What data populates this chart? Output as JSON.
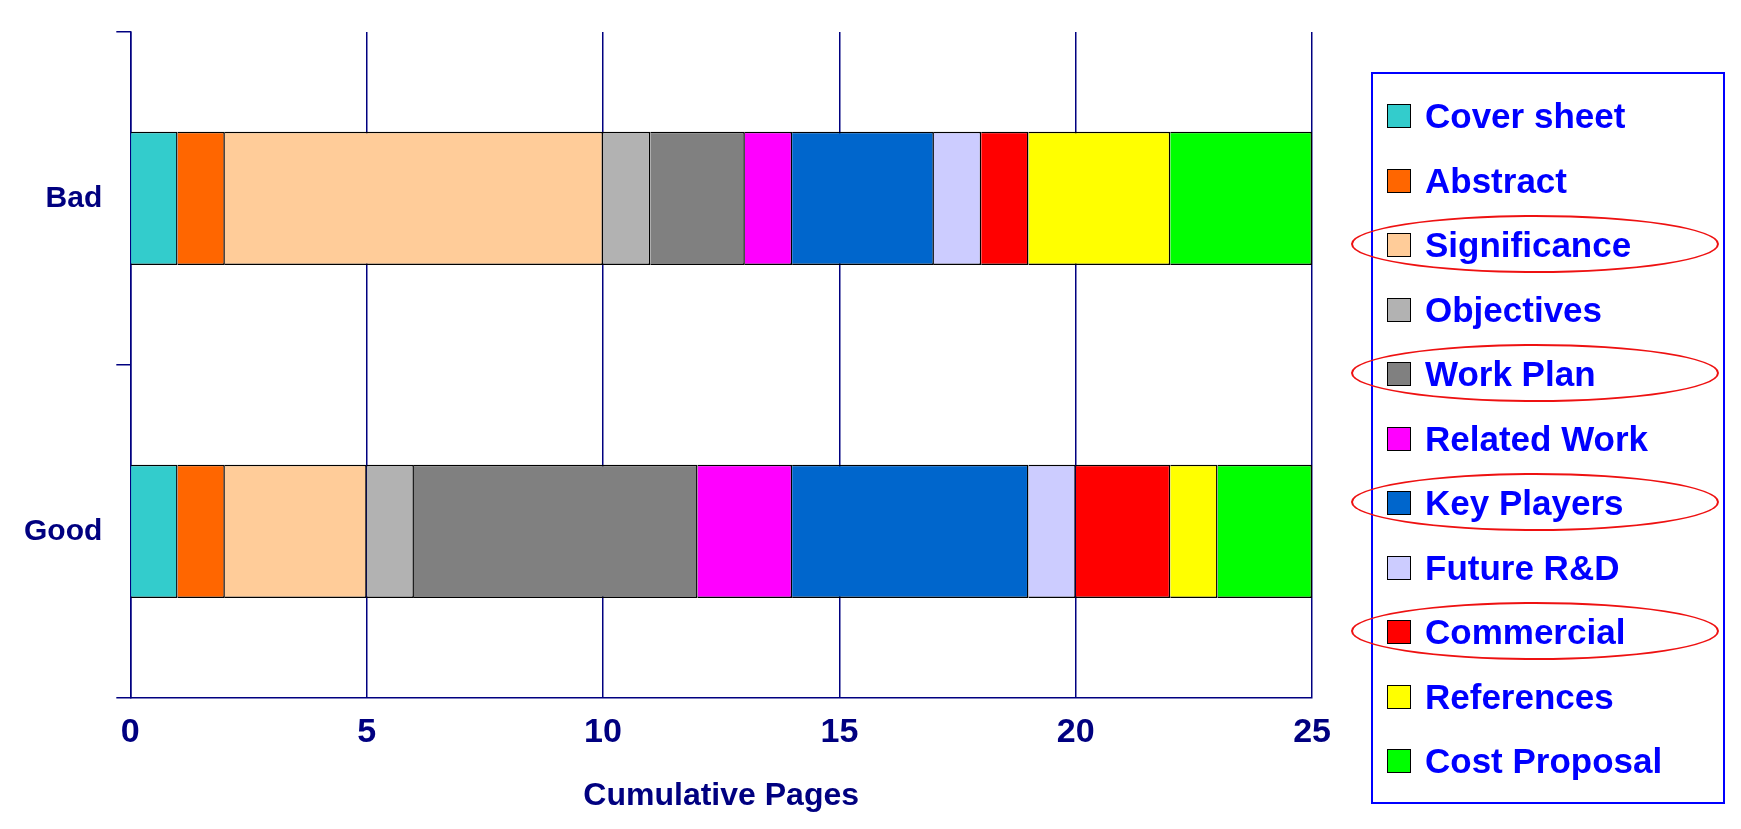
{
  "chart_data": {
    "type": "bar",
    "orientation": "horizontal",
    "stacked": true,
    "xlabel": "Cumulative Pages",
    "categories": [
      "Bad",
      "Good"
    ],
    "series": [
      {
        "name": "Cover sheet",
        "color": "#33cccc",
        "values": [
          1,
          1
        ]
      },
      {
        "name": "Abstract",
        "color": "#ff6600",
        "values": [
          1,
          1
        ]
      },
      {
        "name": "Significance",
        "color": "#ffcc99",
        "values": [
          8,
          3
        ]
      },
      {
        "name": "Objectives",
        "color": "#b2b2b2",
        "values": [
          1,
          1
        ]
      },
      {
        "name": "Work Plan",
        "color": "#808080",
        "values": [
          2,
          6
        ]
      },
      {
        "name": "Related Work",
        "color": "#ff00ff",
        "values": [
          1,
          2
        ]
      },
      {
        "name": "Key Players",
        "color": "#0066cc",
        "values": [
          3,
          5
        ]
      },
      {
        "name": "Future R&D",
        "color": "#ccccff",
        "values": [
          1,
          1
        ]
      },
      {
        "name": "Commercial",
        "color": "#ff0000",
        "values": [
          1,
          2
        ]
      },
      {
        "name": "References",
        "color": "#ffff00",
        "values": [
          3,
          1
        ]
      },
      {
        "name": "Cost Proposal",
        "color": "#00ff00",
        "values": [
          3,
          2
        ]
      }
    ],
    "xlim": [
      0,
      25
    ],
    "xticks": [
      0,
      5,
      10,
      15,
      20,
      25
    ],
    "grid": "x",
    "legend": "right"
  }
}
